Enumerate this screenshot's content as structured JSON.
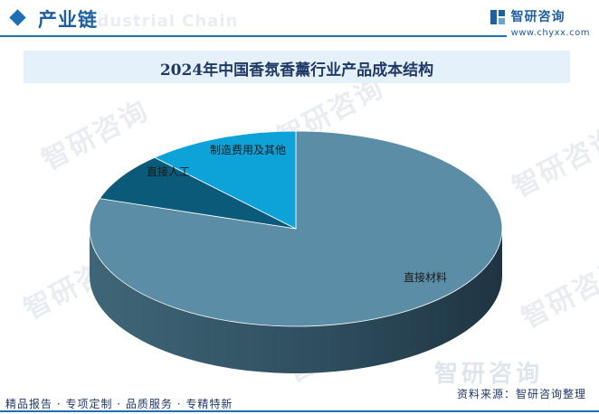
{
  "header": {
    "section_title": "产业链",
    "section_title_en": "Industrial Chain",
    "brand_name": "智研咨询",
    "brand_url": "www.chyxx.com"
  },
  "watermark_text": "智研咨询",
  "chart_data": {
    "type": "pie",
    "title": "2024年中国香氛香薰行业产品成本结构",
    "categories": [
      "直接材料",
      "直接人工",
      "制造费用及其他"
    ],
    "values": [
      80,
      8,
      12
    ],
    "colors": [
      "#5b8ea6",
      "#0b5a7a",
      "#0ea3d8"
    ],
    "style": "3d"
  },
  "footer": {
    "left_text": "精品报告 · 专项定制 · 品质服务 · 专精特新",
    "source_text": "资料来源：智研咨询整理"
  }
}
